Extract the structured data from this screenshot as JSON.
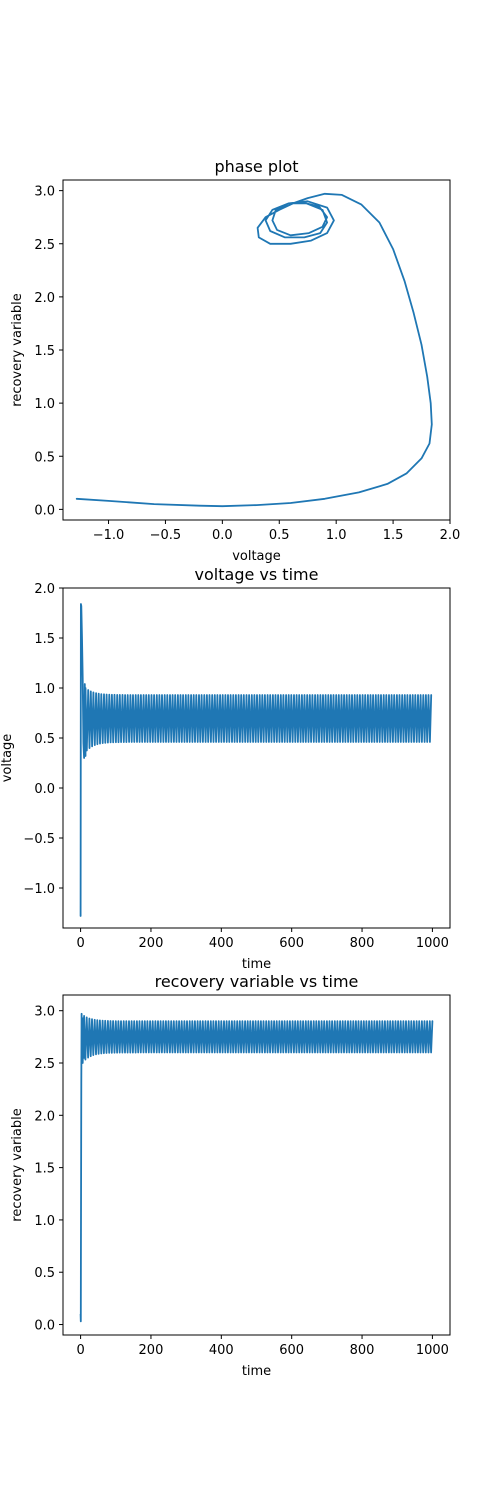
{
  "chart_data": [
    {
      "type": "line",
      "title": "phase plot",
      "xlabel": "voltage",
      "ylabel": "recovery variable",
      "xlim": [
        -1.4,
        2.0
      ],
      "ylim": [
        -0.1,
        3.1
      ],
      "xticks": [
        -1.0,
        -0.5,
        0.0,
        0.5,
        1.0,
        1.5,
        2.0
      ],
      "xtick_labels": [
        "−1.0",
        "−0.5",
        "0.0",
        "0.5",
        "1.0",
        "1.5",
        "2.0"
      ],
      "yticks": [
        0.0,
        0.5,
        1.0,
        1.5,
        2.0,
        2.5,
        3.0
      ],
      "ytick_labels": [
        "0.0",
        "0.5",
        "1.0",
        "1.5",
        "2.0",
        "2.5",
        "3.0"
      ],
      "grid": false,
      "color": "#1f77b4",
      "series": [
        {
          "x": [
            -1.28,
            -1.0,
            -0.6,
            -0.2,
            0.0,
            0.3,
            0.6,
            0.9,
            1.2,
            1.45,
            1.62,
            1.75,
            1.82,
            1.84,
            1.83,
            1.8,
            1.75,
            1.68,
            1.6,
            1.5,
            1.38,
            1.22,
            1.05,
            0.9,
            0.75,
            0.62,
            0.5,
            0.38,
            0.31,
            0.32,
            0.42,
            0.6,
            0.78,
            0.92,
            0.98,
            0.92,
            0.75,
            0.58,
            0.44,
            0.38,
            0.42,
            0.55,
            0.72,
            0.86,
            0.92,
            0.88,
            0.74,
            0.58,
            0.47,
            0.44,
            0.48,
            0.6,
            0.76,
            0.88,
            0.92,
            0.85,
            0.7
          ],
          "y": [
            0.1,
            0.08,
            0.05,
            0.035,
            0.03,
            0.04,
            0.06,
            0.1,
            0.16,
            0.24,
            0.34,
            0.48,
            0.62,
            0.8,
            1.0,
            1.25,
            1.55,
            1.85,
            2.15,
            2.45,
            2.7,
            2.87,
            2.96,
            2.97,
            2.93,
            2.88,
            2.82,
            2.75,
            2.65,
            2.56,
            2.5,
            2.5,
            2.53,
            2.6,
            2.72,
            2.84,
            2.9,
            2.88,
            2.82,
            2.72,
            2.62,
            2.56,
            2.56,
            2.6,
            2.7,
            2.82,
            2.88,
            2.88,
            2.82,
            2.72,
            2.63,
            2.58,
            2.6,
            2.66,
            2.75,
            2.85,
            2.89
          ]
        }
      ]
    },
    {
      "type": "line",
      "title": "voltage vs time",
      "xlabel": "time",
      "ylabel": "voltage",
      "xlim": [
        -50,
        1050
      ],
      "ylim": [
        -1.4,
        2.0
      ],
      "xticks": [
        0,
        200,
        400,
        600,
        800,
        1000
      ],
      "xtick_labels": [
        "0",
        "200",
        "400",
        "600",
        "800",
        "1000"
      ],
      "yticks": [
        -1.0,
        -0.5,
        0.0,
        0.5,
        1.0,
        1.5,
        2.0
      ],
      "ytick_labels": [
        "−1.0",
        "−0.5",
        "0.0",
        "0.5",
        "1.0",
        "1.5",
        "2.0"
      ],
      "grid": false,
      "color": "#1f77b4",
      "series": [
        {
          "x": [
            0,
            1,
            2,
            4,
            6,
            8,
            10,
            12,
            14
          ],
          "y": [
            -1.28,
            1.84,
            1.82,
            1.5,
            1.1,
            0.45,
            0.3,
            1.04,
            0.32
          ],
          "oscillation": {
            "t_start": 14,
            "t_end": 1000,
            "period": 7.5,
            "min": 0.46,
            "max": 0.93,
            "decay_from": [
              0.36,
              1.0
            ]
          }
        }
      ]
    },
    {
      "type": "line",
      "title": "recovery variable vs time",
      "xlabel": "time",
      "ylabel": "recovery variable",
      "xlim": [
        -50,
        1050
      ],
      "ylim": [
        -0.1,
        3.15
      ],
      "xticks": [
        0,
        200,
        400,
        600,
        800,
        1000
      ],
      "xtick_labels": [
        "0",
        "200",
        "400",
        "600",
        "800",
        "1000"
      ],
      "yticks": [
        0.0,
        0.5,
        1.0,
        1.5,
        2.0,
        2.5,
        3.0
      ],
      "ytick_labels": [
        "0.0",
        "0.5",
        "1.0",
        "1.5",
        "2.0",
        "2.5",
        "3.0"
      ],
      "grid": false,
      "color": "#1f77b4",
      "series": [
        {
          "x": [
            0,
            0.5,
            1,
            2,
            3,
            4,
            6,
            8,
            10
          ],
          "y": [
            0.1,
            0.03,
            0.6,
            2.3,
            2.97,
            2.6,
            2.5,
            2.93,
            2.55
          ],
          "oscillation": {
            "t_start": 10,
            "t_end": 1000,
            "period": 7.5,
            "min": 2.6,
            "max": 2.9,
            "decay_from": [
              2.52,
              2.95
            ]
          }
        }
      ]
    }
  ]
}
